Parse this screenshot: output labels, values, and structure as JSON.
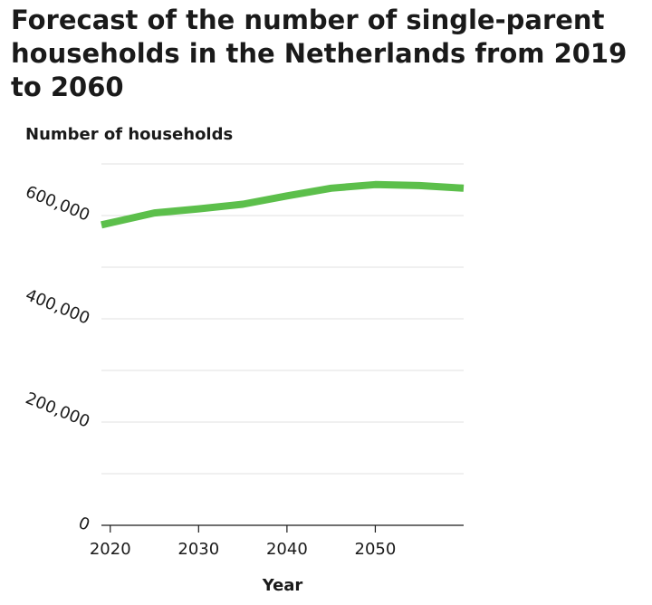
{
  "chart_data": {
    "type": "line",
    "title": "Forecast of the number of single-parent households in the Netherlands from 2019 to 2060",
    "xlabel": "Year",
    "ylabel": "Number of households",
    "xlim": [
      2019,
      2060
    ],
    "ylim": [
      0,
      700000
    ],
    "x_ticks": [
      2020,
      2030,
      2040,
      2050
    ],
    "x_tick_labels": [
      "2020",
      "2030",
      "2040",
      "2050"
    ],
    "y_ticks": [
      0,
      200000,
      400000,
      600000
    ],
    "y_tick_labels": [
      "0",
      "200,000",
      "400,000",
      "600,000"
    ],
    "gridlines_y": [
      100000,
      200000,
      300000,
      400000,
      500000,
      600000,
      700000
    ],
    "grid": true,
    "legend": "none",
    "line_color": "#5cbf4b",
    "series": [
      {
        "x": [
          2019,
          2025,
          2030,
          2035,
          2040,
          2045,
          2050,
          2055,
          2060
        ],
        "values": [
          582000,
          605000,
          613000,
          622000,
          638000,
          653000,
          660000,
          658000,
          653000
        ]
      }
    ]
  }
}
